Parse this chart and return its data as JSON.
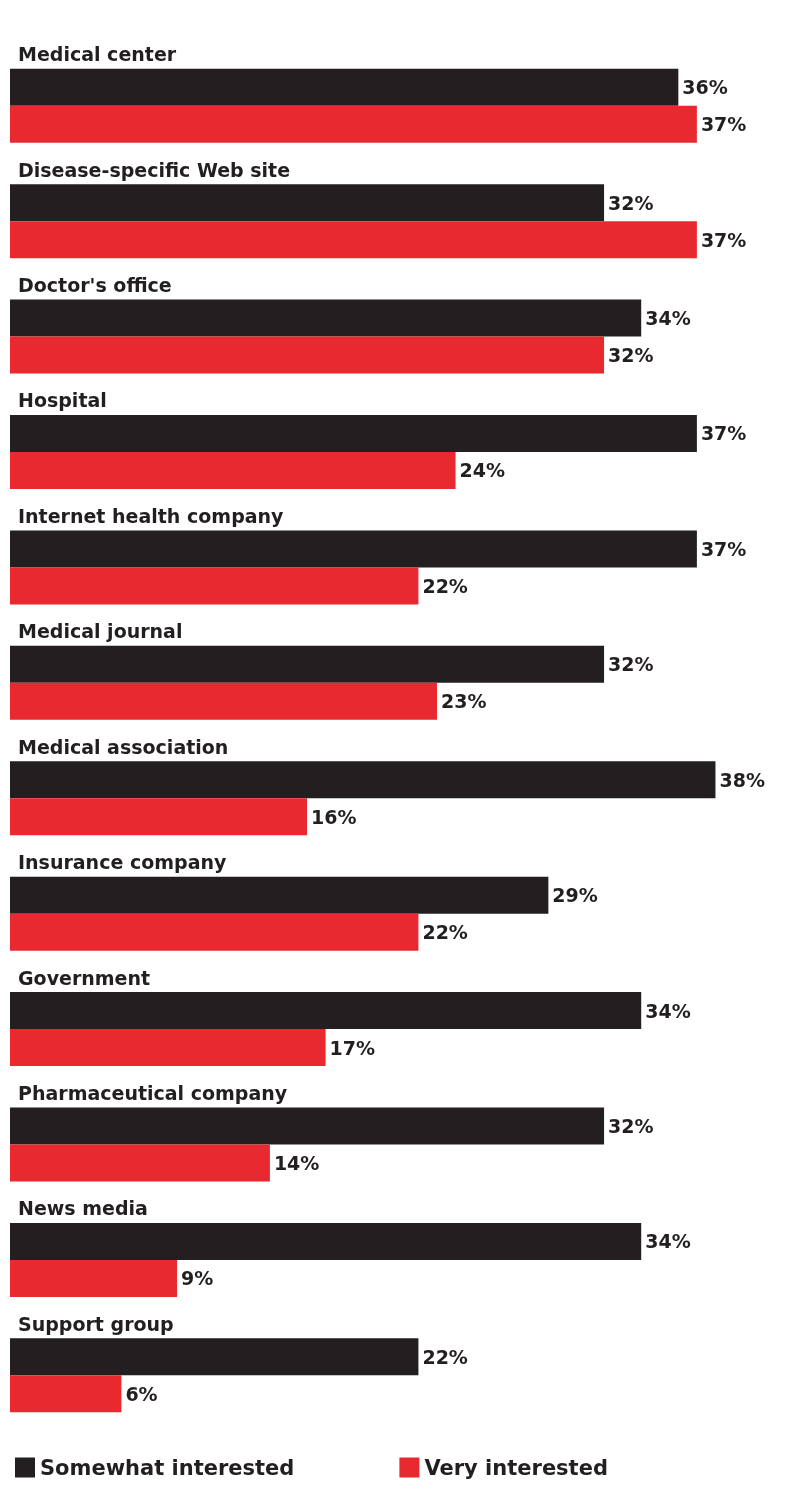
{
  "chart_data": {
    "type": "bar",
    "orientation": "horizontal",
    "categories": [
      "Medical center",
      "Disease-specific Web site",
      "Doctor's office",
      "Hospital",
      "Internet health company",
      "Medical journal",
      "Medical association",
      "Insurance company",
      "Government",
      "Pharmaceutical company",
      "News media",
      "Support group"
    ],
    "series": [
      {
        "name": "Somewhat interested",
        "color": "#231f20",
        "values": [
          36,
          32,
          34,
          37,
          37,
          32,
          38,
          29,
          34,
          32,
          34,
          22
        ],
        "value_labels": [
          "36%",
          "32%",
          "34%",
          "37%",
          "37%",
          "32%",
          "38%",
          "29%",
          "34%",
          "32%",
          "34%",
          "22%"
        ]
      },
      {
        "name": "Very interested",
        "color": "#e8292f",
        "values": [
          37,
          37,
          32,
          24,
          22,
          23,
          16,
          22,
          17,
          14,
          9,
          6
        ],
        "value_labels": [
          "37%",
          "37%",
          "32%",
          "24%",
          "22%",
          "23%",
          "16%",
          "22%",
          "17%",
          "14%",
          "9%",
          "6%"
        ]
      }
    ],
    "legend": "bottom left"
  }
}
